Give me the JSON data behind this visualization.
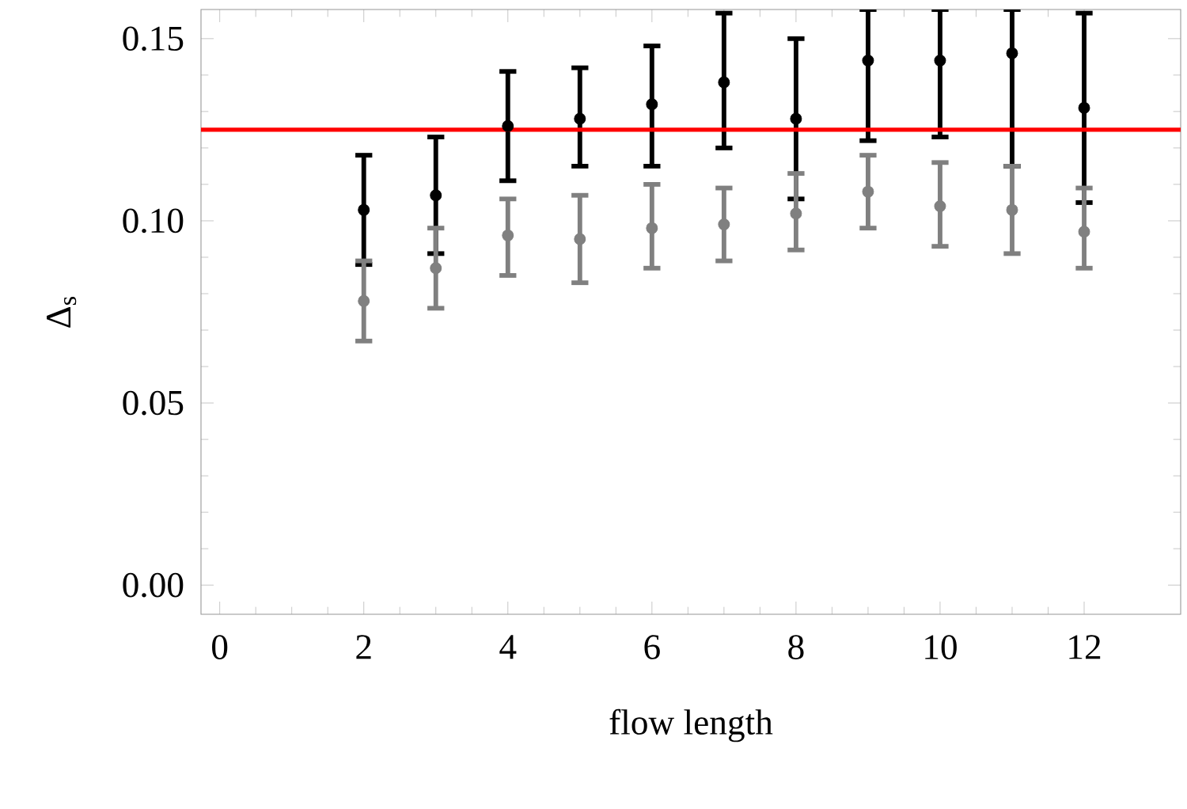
{
  "chart_data": {
    "type": "scatter",
    "xlabel": "flow length",
    "ylabel": "Δ$_{s}$",
    "xlim": [
      -0.26,
      13.34
    ],
    "xticks": [
      0,
      2,
      4,
      6,
      8,
      10,
      12
    ],
    "ylim": [
      -0.008,
      0.158
    ],
    "yticks": [
      {
        "value": 0,
        "label": "0.00"
      },
      {
        "value": 0.05,
        "label": "0.05"
      },
      {
        "value": 0.1,
        "label": "0.10"
      },
      {
        "value": 0.15,
        "label": "0.15"
      }
    ],
    "x": [
      2,
      3,
      4,
      5,
      6,
      7,
      8,
      9,
      10,
      11,
      12
    ],
    "marker": "circle",
    "series": [
      {
        "color": "#000000",
        "values": [
          0.103,
          0.107,
          0.126,
          0.128,
          0.132,
          0.138,
          0.128,
          0.144,
          0.144,
          0.146,
          0.131
        ],
        "errors": [
          [
            0.088,
            0.118
          ],
          [
            0.091,
            0.123
          ],
          [
            0.111,
            0.141
          ],
          [
            0.115,
            0.142
          ],
          [
            0.115,
            0.148
          ],
          [
            0.12,
            0.157
          ],
          [
            0.106,
            0.15
          ],
          [
            0.122,
            0.158
          ],
          [
            0.123,
            0.158
          ],
          [
            0.115,
            0.158
          ],
          [
            0.105,
            0.157
          ]
        ]
      },
      {
        "color": "#808080",
        "values": [
          0.078,
          0.087,
          0.096,
          0.095,
          0.098,
          0.099,
          0.102,
          0.108,
          0.104,
          0.103,
          0.097
        ],
        "errors": [
          [
            0.067,
            0.089
          ],
          [
            0.076,
            0.098
          ],
          [
            0.085,
            0.106
          ],
          [
            0.083,
            0.107
          ],
          [
            0.087,
            0.11
          ],
          [
            0.089,
            0.109
          ],
          [
            0.092,
            0.113
          ],
          [
            0.098,
            0.118
          ],
          [
            0.093,
            0.116
          ],
          [
            0.091,
            0.115
          ],
          [
            0.087,
            0.109
          ]
        ]
      }
    ],
    "ref_lines": [
      {
        "axis": "y",
        "value": 0.125,
        "color": "#ff0000"
      }
    ]
  }
}
